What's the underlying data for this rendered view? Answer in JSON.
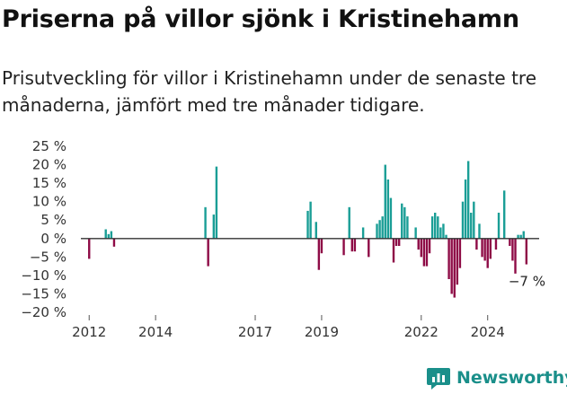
{
  "title": "Priserna på villor sjönk i Kristinehamn",
  "subtitle": "Prisutveckling för villor i Kristinehamn under de senaste tre månaderna, jämfört med tre månader tidigare.",
  "logo": {
    "text": "Newsworthy",
    "icon": "newsworthy-bar-chart-icon"
  },
  "colors": {
    "positive": "#1a9e96",
    "negative": "#8e0b46",
    "zero_line": "#333333",
    "axis_text": "#333333",
    "brand": "#1a8f8a"
  },
  "chart_data": {
    "type": "bar",
    "title": "",
    "xlabel": "",
    "ylabel": "",
    "ylim": [
      -20,
      25
    ],
    "y_ticks": [
      25,
      20,
      15,
      10,
      5,
      0,
      -5,
      -10,
      -15,
      -20
    ],
    "y_tick_labels": [
      "25 %",
      "20 %",
      "15 %",
      "10 %",
      "5 %",
      "0 %",
      "−5 %",
      "−10 %",
      "−15 %",
      "−20 %"
    ],
    "x_ticks": [
      2012,
      2014,
      2017,
      2019,
      2022,
      2024
    ],
    "x_tick_labels": [
      "2012",
      "2014",
      "2017",
      "2019",
      "2022",
      "2024"
    ],
    "grid": false,
    "annotation": "−7 %",
    "values": [
      {
        "x": "2012-01",
        "y": -5.5
      },
      {
        "x": "2012-07",
        "y": 2.5
      },
      {
        "x": "2012-08",
        "y": 1.2
      },
      {
        "x": "2012-09",
        "y": 2
      },
      {
        "x": "2012-10",
        "y": -2.2
      },
      {
        "x": "2015-07",
        "y": 8.5
      },
      {
        "x": "2015-08",
        "y": -7.5
      },
      {
        "x": "2015-10",
        "y": 6.5
      },
      {
        "x": "2015-11",
        "y": 19.5
      },
      {
        "x": "2018-08",
        "y": 7.5
      },
      {
        "x": "2018-09",
        "y": 10
      },
      {
        "x": "2018-11",
        "y": 4.5
      },
      {
        "x": "2018-12",
        "y": -8.5
      },
      {
        "x": "2019-01",
        "y": -4
      },
      {
        "x": "2019-09",
        "y": -4.5
      },
      {
        "x": "2019-11",
        "y": 8.5
      },
      {
        "x": "2019-12",
        "y": -3.5
      },
      {
        "x": "2020-01",
        "y": -3.5
      },
      {
        "x": "2020-04",
        "y": 3
      },
      {
        "x": "2020-06",
        "y": -5
      },
      {
        "x": "2020-09",
        "y": 4
      },
      {
        "x": "2020-10",
        "y": 5
      },
      {
        "x": "2020-11",
        "y": 6
      },
      {
        "x": "2020-12",
        "y": 20
      },
      {
        "x": "2021-01",
        "y": 16
      },
      {
        "x": "2021-02",
        "y": 11
      },
      {
        "x": "2021-03",
        "y": -6.5
      },
      {
        "x": "2021-04",
        "y": -2
      },
      {
        "x": "2021-05",
        "y": -2
      },
      {
        "x": "2021-06",
        "y": 9.5
      },
      {
        "x": "2021-07",
        "y": 8.5
      },
      {
        "x": "2021-08",
        "y": 6
      },
      {
        "x": "2021-11",
        "y": 3
      },
      {
        "x": "2021-12",
        "y": -3
      },
      {
        "x": "2022-01",
        "y": -5
      },
      {
        "x": "2022-02",
        "y": -7.5
      },
      {
        "x": "2022-03",
        "y": -7.5
      },
      {
        "x": "2022-04",
        "y": -4
      },
      {
        "x": "2022-05",
        "y": 6
      },
      {
        "x": "2022-06",
        "y": 7
      },
      {
        "x": "2022-07",
        "y": 6
      },
      {
        "x": "2022-08",
        "y": 3
      },
      {
        "x": "2022-09",
        "y": 4
      },
      {
        "x": "2022-10",
        "y": 1
      },
      {
        "x": "2022-11",
        "y": -11
      },
      {
        "x": "2022-12",
        "y": -15
      },
      {
        "x": "2023-01",
        "y": -16
      },
      {
        "x": "2023-02",
        "y": -12.5
      },
      {
        "x": "2023-03",
        "y": -8
      },
      {
        "x": "2023-04",
        "y": 10
      },
      {
        "x": "2023-05",
        "y": 16
      },
      {
        "x": "2023-06",
        "y": 21
      },
      {
        "x": "2023-07",
        "y": 7
      },
      {
        "x": "2023-08",
        "y": 10
      },
      {
        "x": "2023-09",
        "y": -3
      },
      {
        "x": "2023-10",
        "y": 4
      },
      {
        "x": "2023-11",
        "y": -5
      },
      {
        "x": "2023-12",
        "y": -6
      },
      {
        "x": "2024-01",
        "y": -8
      },
      {
        "x": "2024-02",
        "y": -5.5
      },
      {
        "x": "2024-04",
        "y": -3
      },
      {
        "x": "2024-05",
        "y": 7
      },
      {
        "x": "2024-07",
        "y": 13
      },
      {
        "x": "2024-09",
        "y": -2
      },
      {
        "x": "2024-10",
        "y": -6
      },
      {
        "x": "2024-11",
        "y": -9.5
      },
      {
        "x": "2024-12",
        "y": 1
      },
      {
        "x": "2025-01",
        "y": 1
      },
      {
        "x": "2025-02",
        "y": 2
      },
      {
        "x": "2025-03",
        "y": -7
      }
    ]
  }
}
